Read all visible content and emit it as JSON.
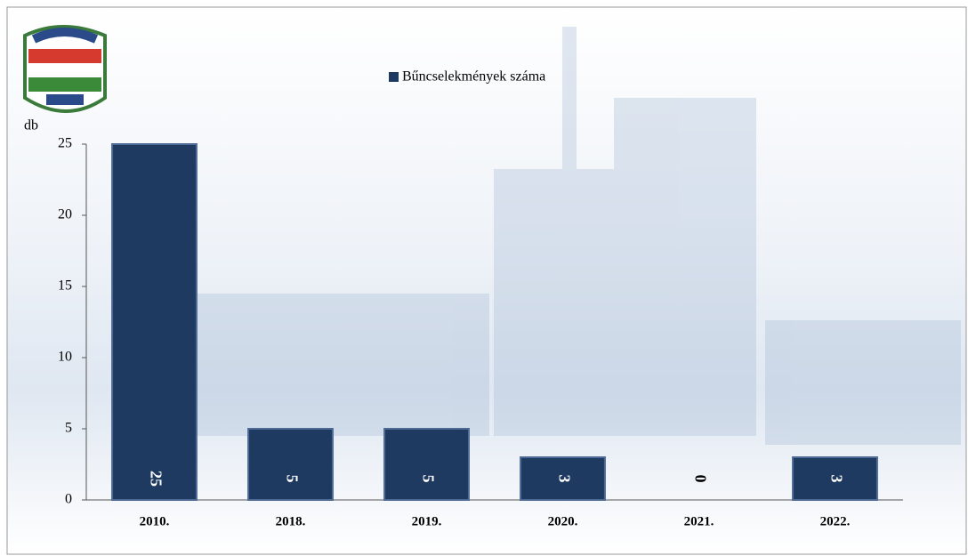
{
  "chart_data": {
    "type": "bar",
    "legend": "Bűncselekmények száma",
    "y_label": "db",
    "categories": [
      "2010.",
      "2018.",
      "2019.",
      "2020.",
      "2021.",
      "2022."
    ],
    "values": [
      25,
      5,
      5,
      3,
      0,
      3
    ],
    "color": "#1f3a60",
    "ylim": [
      0,
      25
    ],
    "yticks": [
      0,
      5,
      10,
      15,
      20,
      25
    ],
    "grid": false
  }
}
